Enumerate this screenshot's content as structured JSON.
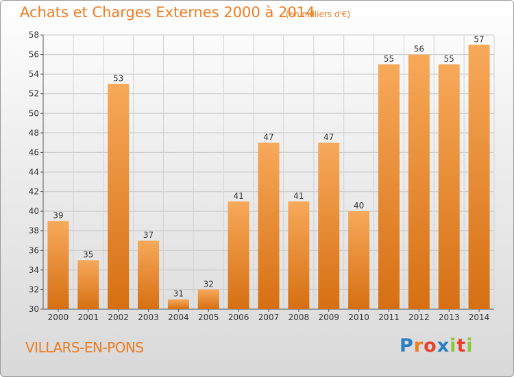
{
  "header": {
    "title": "Achats et Charges Externes 2000 à 2014",
    "unit": "(en milliers d'€)"
  },
  "footer": {
    "commune": "VILLARS-EN-PONS",
    "logo_letters": [
      "P",
      "r",
      "o",
      "x",
      "i",
      "t",
      "i"
    ]
  },
  "colors": {
    "title": "#f07a1e",
    "bar_top": "#f7a95a",
    "bar_bottom": "#d66f12",
    "logo": [
      "#2a7fc4",
      "#f07a1e",
      "#e8402b",
      "#2a7fc4",
      "#8cc63f",
      "#e8402b",
      "#8cc63f"
    ]
  },
  "chart_data": {
    "type": "bar",
    "title": "Achats et Charges Externes 2000 à 2014",
    "ylabel": "en milliers d'€",
    "xlabel": "",
    "categories": [
      "2000",
      "2001",
      "2002",
      "2003",
      "2004",
      "2005",
      "2006",
      "2007",
      "2008",
      "2009",
      "2010",
      "2011",
      "2012",
      "2013",
      "2014"
    ],
    "values": [
      39,
      35,
      53,
      37,
      31,
      32,
      41,
      47,
      41,
      47,
      40,
      55,
      56,
      55,
      57
    ],
    "ylim": [
      30,
      58
    ],
    "yticks": [
      30,
      32,
      34,
      36,
      38,
      40,
      42,
      44,
      46,
      48,
      50,
      52,
      54,
      56,
      58
    ],
    "grid": true,
    "legend": "none"
  }
}
